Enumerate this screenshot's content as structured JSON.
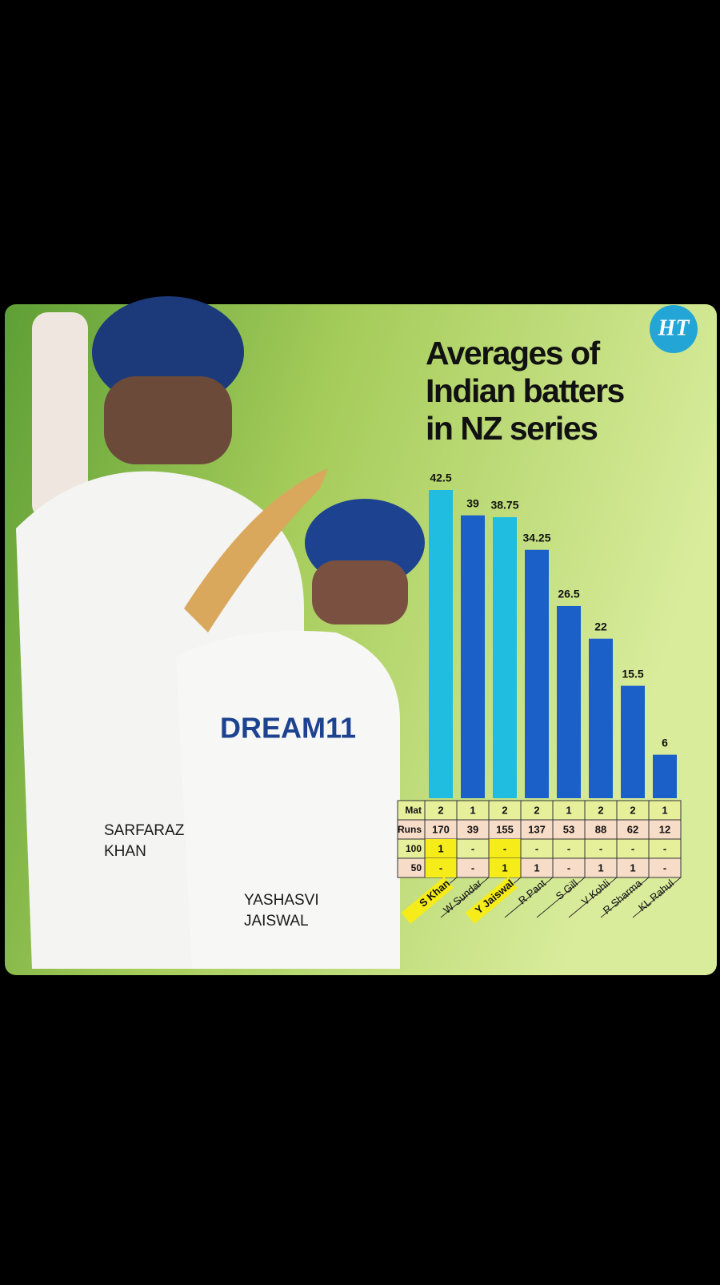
{
  "chart_data": {
    "type": "bar",
    "title": [
      "Averages of",
      "Indian batters",
      "in NZ series"
    ],
    "logo": "HT",
    "captions": [
      "SARFARAZ KHAN",
      "YASHASVI JAISWAL"
    ],
    "categories": [
      "S Khan",
      "W Sundar",
      "Y Jaiswal",
      "R Pant",
      "S Gill",
      "V Kohli",
      "R Sharma",
      "KL Rahul"
    ],
    "values": [
      42.5,
      39,
      38.75,
      34.25,
      26.5,
      22,
      15.5,
      6
    ],
    "colors": [
      "#21bde0",
      "#1b5fc9",
      "#21bde0",
      "#1b5fc9",
      "#1b5fc9",
      "#1b5fc9",
      "#1b5fc9",
      "#1b5fc9"
    ],
    "highlighted": [
      0,
      2
    ],
    "highlight_color": "#f5ec1a",
    "table": {
      "rows": [
        {
          "label": "Mat",
          "cells": [
            2,
            1,
            2,
            2,
            1,
            2,
            2,
            1
          ]
        },
        {
          "label": "Runs",
          "cells": [
            170,
            39,
            155,
            137,
            53,
            88,
            62,
            12
          ]
        },
        {
          "label": "100",
          "cells": [
            1,
            "-",
            "-",
            "-",
            "-",
            "-",
            "-",
            "-"
          ]
        },
        {
          "label": "50",
          "cells": [
            "-",
            "-",
            1,
            1,
            "-",
            1,
            1,
            "-"
          ]
        }
      ]
    }
  }
}
